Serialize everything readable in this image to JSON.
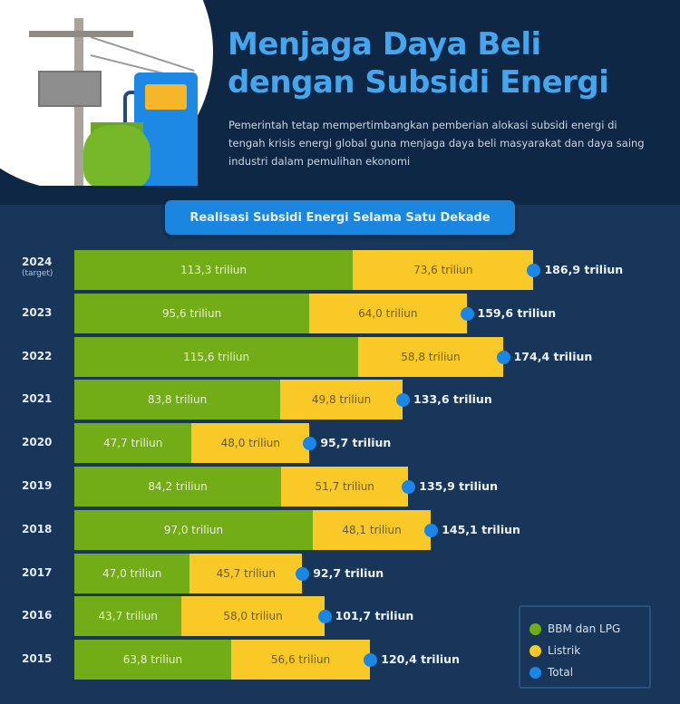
{
  "header": {
    "title_line1": "Menjaga Daya Beli",
    "title_line2": "dengan Subsidi Energi",
    "description": "Pemerintah tetap mempertimbangkan pemberian alokasi subsidi energi di tengah krisis energi global guna menjaga daya beli masyarakat dan daya saing industri dalam pemulihan ekonomi"
  },
  "chart_title": "Realisasi Subsidi Energi Selama Satu Dekade",
  "colors": {
    "bbm_lpg": "#72ad17",
    "listrik": "#f9c927",
    "total": "#1a86e8",
    "background": "#17365a",
    "header_bg": "#0e2745",
    "title": "#43a6ee"
  },
  "legend": [
    {
      "label": "BBM dan LPG",
      "color": "#72ad17"
    },
    {
      "label": "Listrik",
      "color": "#f9c927"
    },
    {
      "label": "Total",
      "color": "#1a86e8"
    }
  ],
  "rows": [
    {
      "year": "2024",
      "sub": "(target)",
      "bbm_label": "113,3 triliun",
      "listrik_label": "73,6 triliun",
      "total_label": "186,9 triliun"
    },
    {
      "year": "2023",
      "sub": "",
      "bbm_label": "95,6 triliun",
      "listrik_label": "64,0 triliun",
      "total_label": "159,6 triliun"
    },
    {
      "year": "2022",
      "sub": "",
      "bbm_label": "115,6 triliun",
      "listrik_label": "58,8 triliun",
      "total_label": "174,4 triliun"
    },
    {
      "year": "2021",
      "sub": "",
      "bbm_label": "83,8 triliun",
      "listrik_label": "49,8 triliun",
      "total_label": "133,6 triliun"
    },
    {
      "year": "2020",
      "sub": "",
      "bbm_label": "47,7 triliun",
      "listrik_label": "48,0 triliun",
      "total_label": "95,7 triliun"
    },
    {
      "year": "2019",
      "sub": "",
      "bbm_label": "84,2 triliun",
      "listrik_label": "51,7 triliun",
      "total_label": "135,9 triliun"
    },
    {
      "year": "2018",
      "sub": "",
      "bbm_label": "97,0 triliun",
      "listrik_label": "48,1 triliun",
      "total_label": "145,1 triliun"
    },
    {
      "year": "2017",
      "sub": "",
      "bbm_label": "47,0 triliun",
      "listrik_label": "45,7 triliun",
      "total_label": "92,7 triliun"
    },
    {
      "year": "2016",
      "sub": "",
      "bbm_label": "43,7 triliun",
      "listrik_label": "58,0 triliun",
      "total_label": "101,7 triliun"
    },
    {
      "year": "2015",
      "sub": "",
      "bbm_label": "63,8 triliun",
      "listrik_label": "56,6 triliun",
      "total_label": "120,4 triliun"
    }
  ],
  "chart_data": {
    "type": "bar",
    "orientation": "horizontal",
    "stacked": true,
    "title": "Realisasi Subsidi Energi Selama Satu Dekade",
    "unit": "triliun (Rp)",
    "categories": [
      "2024 (target)",
      "2023",
      "2022",
      "2021",
      "2020",
      "2019",
      "2018",
      "2017",
      "2016",
      "2015"
    ],
    "series": [
      {
        "name": "BBM dan LPG",
        "color": "#72ad17",
        "values": [
          113.3,
          95.6,
          115.6,
          83.8,
          47.7,
          84.2,
          97.0,
          47.0,
          43.7,
          63.8
        ]
      },
      {
        "name": "Listrik",
        "color": "#f9c927",
        "values": [
          73.6,
          64.0,
          58.8,
          49.8,
          48.0,
          51.7,
          48.1,
          45.7,
          58.0,
          56.6
        ]
      },
      {
        "name": "Total",
        "color": "#1a86e8",
        "values": [
          186.9,
          159.6,
          174.4,
          133.6,
          95.7,
          135.9,
          145.1,
          92.7,
          101.7,
          120.4
        ]
      }
    ],
    "xlabel": "",
    "ylabel": "",
    "grid": false,
    "legend_position": "bottom-right"
  }
}
